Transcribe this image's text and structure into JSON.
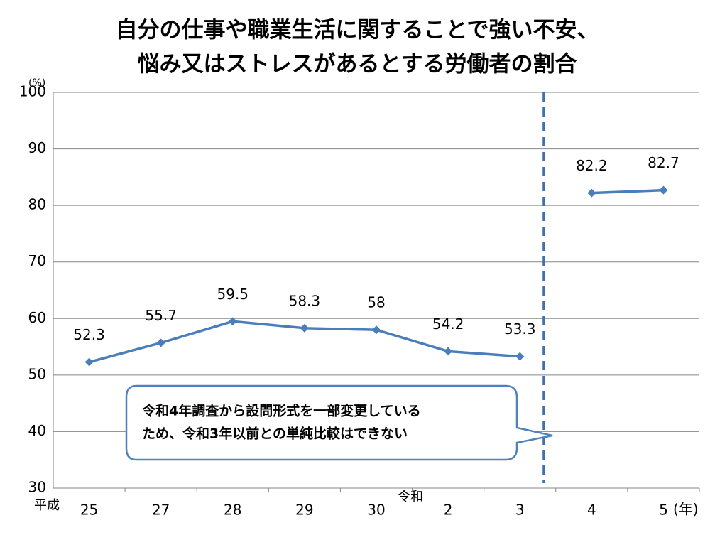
{
  "chart_data": {
    "type": "line",
    "title": [
      "自分の仕事や職業生活に関することで強い不安、",
      "悩み又はストレスがあるとする労働者の割合"
    ],
    "y_unit": "(%)",
    "x_unit": "(年)",
    "era_labels": [
      "平成",
      "令和"
    ],
    "categories": [
      "25",
      "27",
      "28",
      "29",
      "30",
      "2",
      "3",
      "4",
      "5"
    ],
    "series": [
      {
        "color": "#4a7ebb",
        "values": [
          52.3,
          55.7,
          59.5,
          58.3,
          58.0,
          54.2,
          53.3,
          null,
          null
        ]
      },
      {
        "color": "#4a7ebb",
        "values": [
          null,
          null,
          null,
          null,
          null,
          null,
          null,
          82.2,
          82.7
        ]
      }
    ],
    "ylim": [
      30,
      100
    ],
    "yticks": [
      30,
      40,
      50,
      60,
      70,
      80,
      90,
      100
    ],
    "grid": true,
    "annotation": [
      "令和4年調査から設問形式を一部変更している",
      "ため、令和3年以前との単純比較はできない"
    ]
  }
}
